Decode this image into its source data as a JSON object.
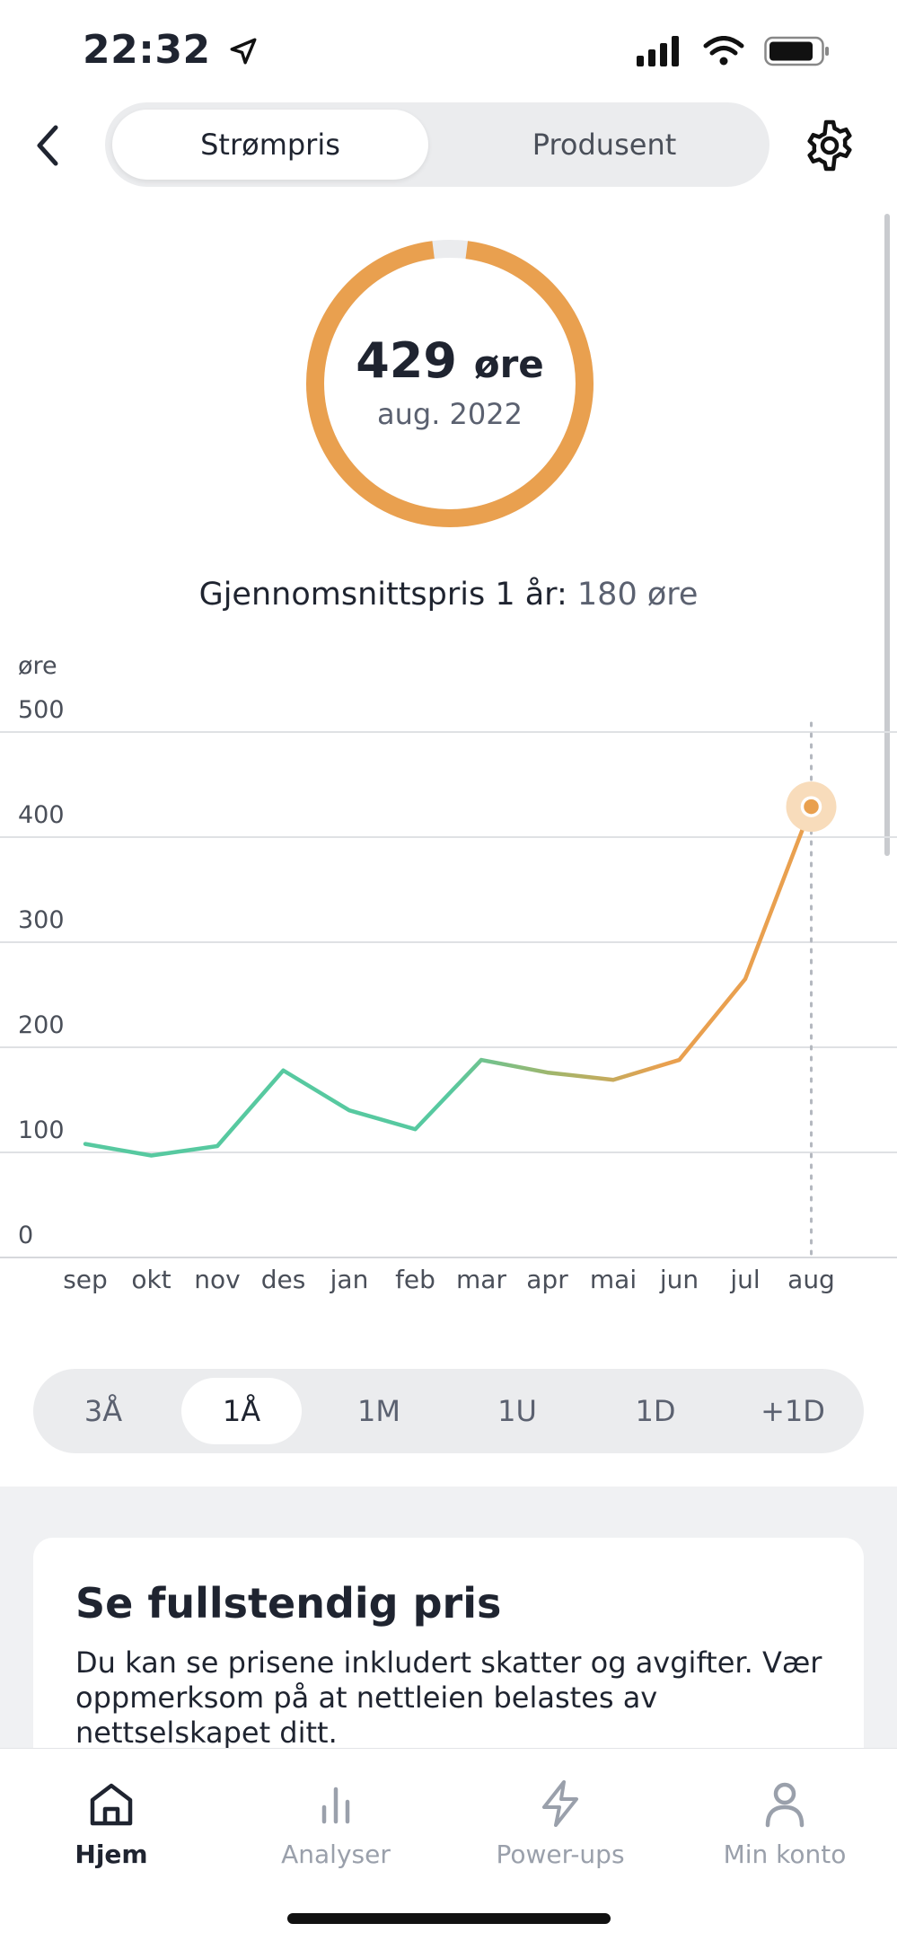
{
  "status_bar": {
    "time": "22:32"
  },
  "header": {
    "tabs": [
      {
        "label": "Strømpris",
        "active": true
      },
      {
        "label": "Produsent",
        "active": false
      }
    ]
  },
  "summary": {
    "value": "429",
    "unit": "øre",
    "period": "aug. 2022",
    "average_label": "Gjennomsnittspris 1 år:",
    "average_value": "180 øre",
    "progress_fraction": 0.96
  },
  "chart_data": {
    "type": "line",
    "ylabel": "øre",
    "ylim": [
      0,
      500
    ],
    "yticks": [
      "500",
      "400",
      "300",
      "200",
      "100",
      "0"
    ],
    "categories": [
      "sep",
      "okt",
      "nov",
      "des",
      "jan",
      "feb",
      "mar",
      "apr",
      "mai",
      "jun",
      "jul",
      "aug"
    ],
    "series": [
      {
        "values": [
          108,
          97,
          106,
          178,
          140,
          122,
          188,
          176,
          169,
          188,
          265,
          429
        ]
      }
    ],
    "highlight_index": 11,
    "grid": true,
    "colors": {
      "low": "#57c9a0",
      "high": "#e9a04f"
    }
  },
  "range_selector": {
    "options": [
      "3Å",
      "1Å",
      "1M",
      "1U",
      "1D",
      "+1D"
    ],
    "active": "1Å"
  },
  "card": {
    "title": "Se fullstendig pris",
    "body": "Du kan se prisene inkludert skatter og avgifter. Vær oppmerksom på at nettleien belastes av nettselskapet ditt."
  },
  "tab_bar": {
    "items": [
      {
        "label": "Hjem",
        "icon": "home-icon",
        "active": true
      },
      {
        "label": "Analyser",
        "icon": "chart-icon",
        "active": false
      },
      {
        "label": "Power-ups",
        "icon": "lightning-icon",
        "active": false
      },
      {
        "label": "Min konto",
        "icon": "person-icon",
        "active": false
      }
    ]
  },
  "colors": {
    "accent": "#e9a04f",
    "green": "#57c9a0",
    "text": "#1f2430"
  }
}
